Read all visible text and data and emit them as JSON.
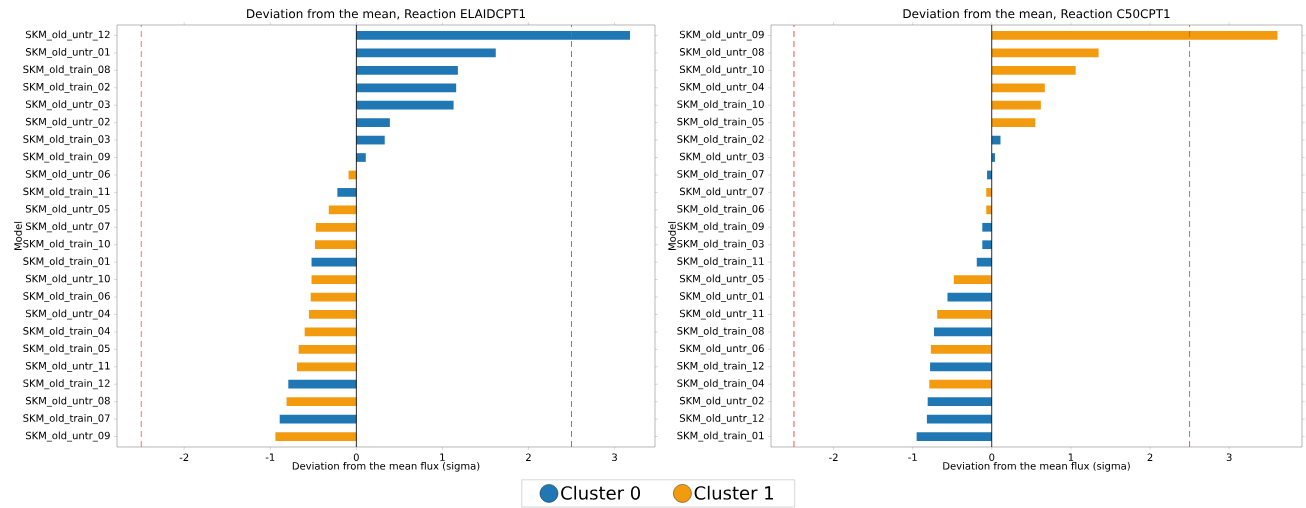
{
  "chart_data": [
    {
      "type": "bar",
      "orientation": "horizontal",
      "title": "Deviation from the mean, Reaction ELAIDCPT1",
      "xlabel": "Deviation from the mean flux (sigma)",
      "ylabel": "Model",
      "categories": [
        "SKM_old_untr_12",
        "SKM_old_untr_01",
        "SKM_old_train_08",
        "SKM_old_train_02",
        "SKM_old_untr_03",
        "SKM_old_untr_02",
        "SKM_old_train_03",
        "SKM_old_train_09",
        "SKM_old_untr_06",
        "SKM_old_train_11",
        "SKM_old_untr_05",
        "SKM_old_untr_07",
        "SKM_old_train_10",
        "SKM_old_train_01",
        "SKM_old_untr_10",
        "SKM_old_train_06",
        "SKM_old_untr_04",
        "SKM_old_train_04",
        "SKM_old_train_05",
        "SKM_old_untr_11",
        "SKM_old_train_12",
        "SKM_old_untr_08",
        "SKM_old_train_07",
        "SKM_old_untr_09"
      ],
      "series": [
        {
          "name": "Cluster 0",
          "color": "#1f77b4",
          "values": [
            3.18,
            1.62,
            1.18,
            1.16,
            1.13,
            0.39,
            0.33,
            0.11,
            null,
            -0.22,
            null,
            null,
            null,
            -0.52,
            null,
            null,
            null,
            null,
            null,
            null,
            -0.79,
            null,
            -0.89,
            null
          ]
        },
        {
          "name": "Cluster 1",
          "color": "#f29b0f",
          "values": [
            null,
            null,
            null,
            null,
            null,
            null,
            null,
            null,
            -0.09,
            null,
            -0.32,
            -0.47,
            -0.48,
            null,
            -0.52,
            -0.53,
            -0.55,
            -0.6,
            -0.67,
            -0.69,
            null,
            -0.81,
            null,
            -0.94
          ]
        }
      ],
      "xlim": [
        -2.78,
        3.47
      ],
      "xticks": [
        -2,
        -1,
        0,
        1,
        2,
        3
      ],
      "ref_lines": [
        {
          "axis": "x",
          "value": -2.5,
          "color": "#f03c3c",
          "line_style": "dashed"
        },
        {
          "axis": "x",
          "value": 2.5,
          "color": "#f03c3c",
          "line_style": "dashed"
        },
        {
          "axis": "x",
          "value": 0,
          "color": "#000000",
          "line_style": "solid"
        }
      ],
      "legend": "bottom"
    },
    {
      "type": "bar",
      "orientation": "horizontal",
      "title": "Deviation from the mean, Reaction C50CPT1",
      "xlabel": "Deviation from the mean flux (sigma)",
      "ylabel": "Model",
      "categories": [
        "SKM_old_untr_09",
        "SKM_old_untr_08",
        "SKM_old_untr_10",
        "SKM_old_untr_04",
        "SKM_old_train_10",
        "SKM_old_train_05",
        "SKM_old_train_02",
        "SKM_old_untr_03",
        "SKM_old_train_07",
        "SKM_old_untr_07",
        "SKM_old_train_06",
        "SKM_old_train_09",
        "SKM_old_train_03",
        "SKM_old_train_11",
        "SKM_old_untr_05",
        "SKM_old_untr_01",
        "SKM_old_untr_11",
        "SKM_old_train_08",
        "SKM_old_untr_06",
        "SKM_old_train_12",
        "SKM_old_train_04",
        "SKM_old_untr_02",
        "SKM_old_untr_12",
        "SKM_old_train_01"
      ],
      "series": [
        {
          "color": "#1f77b4",
          "values": [
            null,
            null,
            null,
            null,
            null,
            null,
            0.11,
            0.04,
            -0.06,
            null,
            null,
            -0.12,
            -0.12,
            -0.19,
            null,
            -0.56,
            null,
            -0.73,
            null,
            -0.78,
            null,
            -0.81,
            -0.82,
            -0.95
          ]
        },
        {
          "color": "#f29b0f",
          "values": [
            3.61,
            1.35,
            1.06,
            0.67,
            0.62,
            0.55,
            null,
            null,
            null,
            -0.07,
            -0.07,
            null,
            null,
            null,
            -0.48,
            null,
            -0.69,
            null,
            -0.77,
            null,
            -0.79,
            null,
            null,
            null
          ]
        }
      ],
      "xlim": [
        -2.79,
        3.92
      ],
      "xticks": [
        -2,
        -1,
        0,
        1,
        2,
        3
      ],
      "ref_lines": [
        {
          "axis": "x",
          "value": -2.5,
          "color": "#f03c3c",
          "line_style": "dashed"
        },
        {
          "axis": "x",
          "value": 2.5,
          "color": "#f03c3c",
          "line_style": "dashed"
        },
        {
          "axis": "x",
          "value": 0,
          "color": "#000000",
          "line_style": "solid"
        }
      ]
    }
  ]
}
